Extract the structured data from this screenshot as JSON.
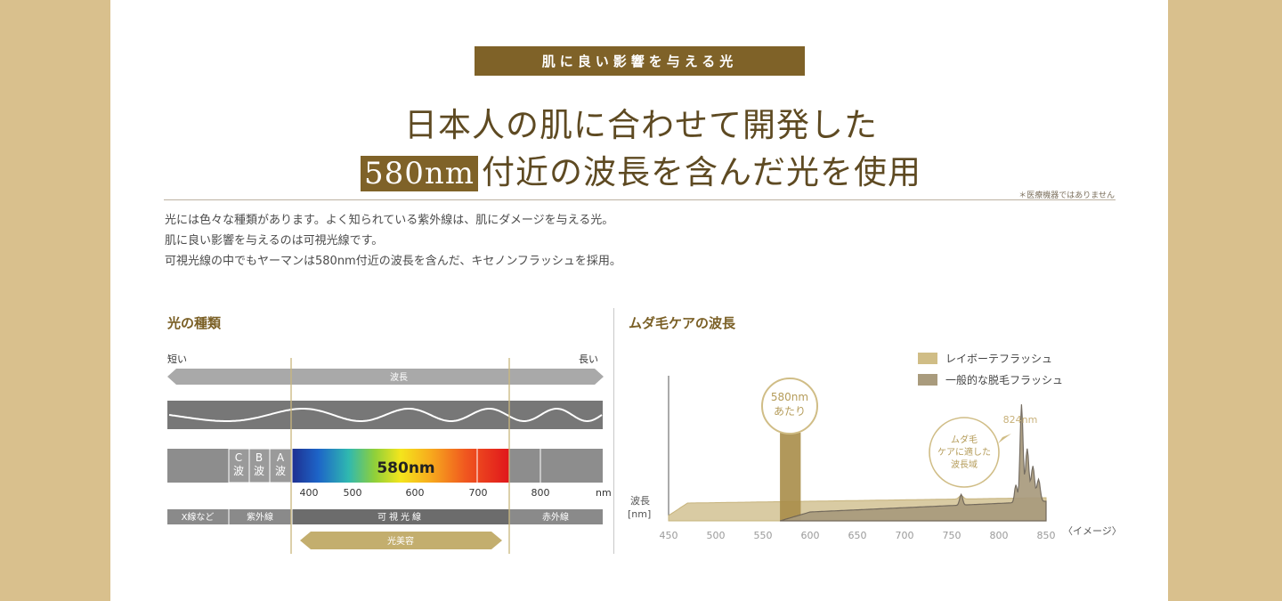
{
  "badge": "肌に良い影響を与える光",
  "headline": {
    "line1": "日本人の肌に合わせて開発した",
    "highlight": "580nm",
    "line2_rest": "付近の波長を含んだ光を使用"
  },
  "note": "＊医療機器ではありません",
  "body_lines": [
    "光には色々な種類があります。よく知られている紫外線は、肌にダメージを与える光。",
    "肌に良い影響を与えるのは可視光線です。",
    "可視光線の中でもヤーマンは580nm付近の波長を含んだ、キセノンフラッシュを採用。"
  ],
  "left_panel": {
    "title": "光の種類",
    "short": "短い",
    "long": "長い",
    "wavelength": "波長",
    "c_wave": "C波",
    "b_wave": "B波",
    "a_wave": "A波",
    "spectrum_label": "580nm",
    "ticks": [
      "400",
      "500",
      "600",
      "700",
      "800"
    ],
    "unit": "nm",
    "categories": [
      "X線など",
      "紫外線",
      "可視光線",
      "赤外線"
    ],
    "beauty_light": "光美容"
  },
  "right_panel": {
    "title": "ムダ毛ケアの波長",
    "legend": [
      "レイボーテフラッシュ",
      "一般的な脱毛フラッシュ"
    ],
    "callout_580": [
      "580nm",
      "あたり"
    ],
    "peak_label": "824nm",
    "callout_care": [
      "ムダ毛",
      "ケアに適した",
      "波長域"
    ],
    "ylabel": [
      "波長",
      "[nm]"
    ],
    "xticks": [
      "450",
      "500",
      "550",
      "600",
      "650",
      "700",
      "750",
      "800",
      "850"
    ],
    "image_note": "〈イメージ〉"
  },
  "colors": {
    "gold": "#7f6228",
    "tan": "#d6c69b",
    "olive": "#a8987a",
    "bg": "#d9c08d"
  }
}
